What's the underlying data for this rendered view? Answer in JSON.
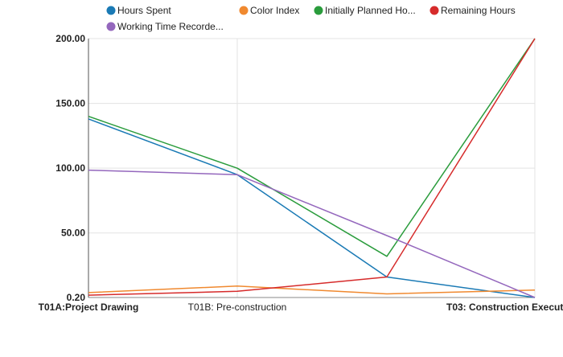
{
  "chart_data": {
    "type": "line",
    "categories": [
      "T01A:Project Drawing",
      "T01B: Pre-construction",
      "",
      "T03: Construction Execut"
    ],
    "category_bold": [
      true,
      false,
      false,
      true
    ],
    "y_ticks": [
      "0.20",
      "50.00",
      "100.00",
      "150.00",
      "200.00"
    ],
    "ylim": [
      0.2,
      200
    ],
    "grid": true,
    "legend_position": "top",
    "series": [
      {
        "name": "Hours Spent",
        "color": "#1a7ab5",
        "values": [
          138,
          95,
          16,
          0.2
        ]
      },
      {
        "name": "Color Index",
        "color": "#f0892f",
        "values": [
          4,
          9,
          3,
          6
        ]
      },
      {
        "name": "Initially Planned Ho...",
        "color": "#2a9c3c",
        "values": [
          140,
          100,
          32,
          200
        ]
      },
      {
        "name": "Remaining Hours",
        "color": "#d62b2b",
        "values": [
          2,
          5,
          16,
          200
        ]
      },
      {
        "name": "Working Time Recorde...",
        "color": "#9467bd",
        "values": [
          98.5,
          95,
          48,
          0.2
        ]
      }
    ]
  }
}
